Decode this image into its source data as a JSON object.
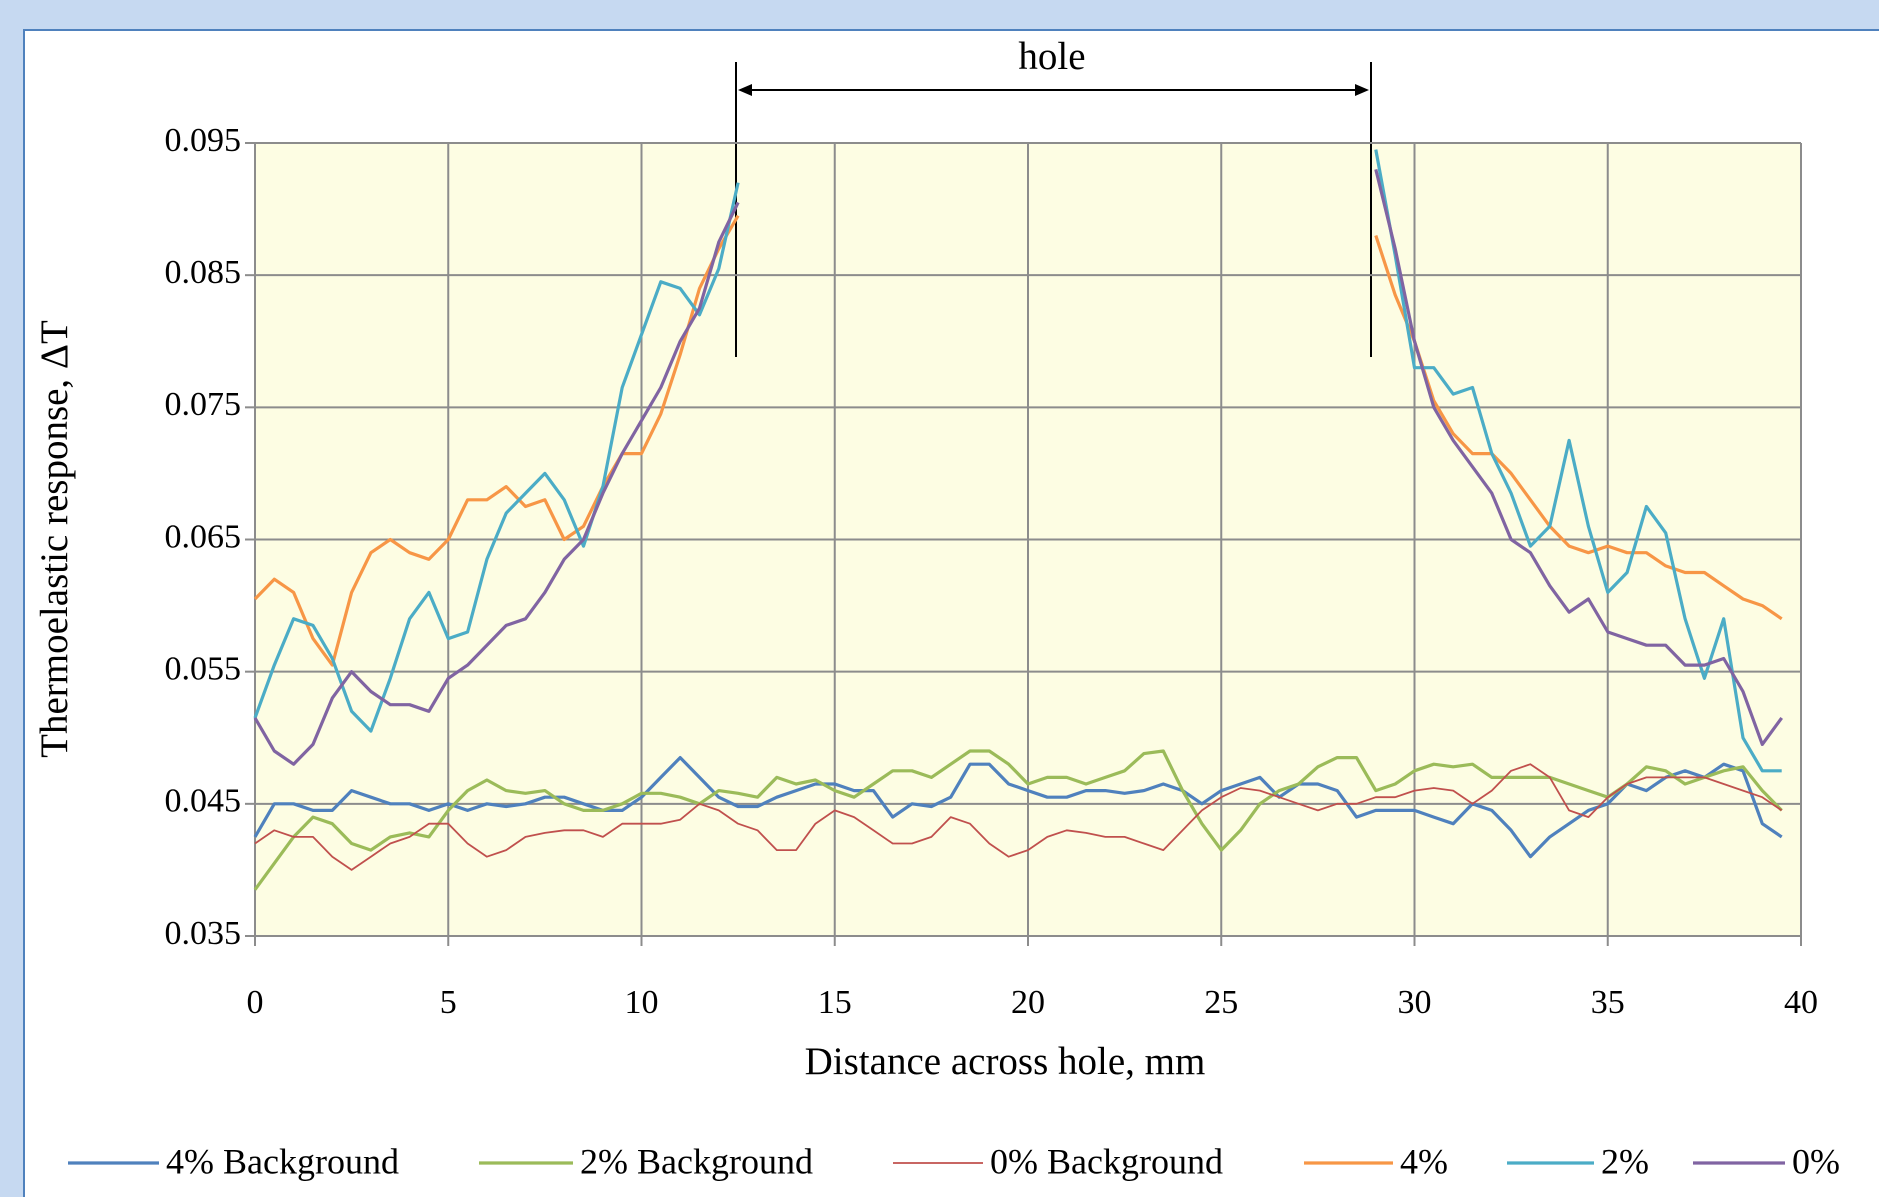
{
  "chart_data": {
    "type": "line",
    "xlabel": "Distance across hole, mm",
    "ylabel": "Thermoelastic response, ΔT",
    "annotation": "hole",
    "x": [
      0,
      0.5,
      1,
      1.5,
      2,
      2.5,
      3,
      3.5,
      4,
      4.5,
      5,
      5.5,
      6,
      6.5,
      7,
      7.5,
      8,
      8.5,
      9,
      9.5,
      10,
      10.5,
      11,
      11.5,
      12,
      12.5,
      13,
      13.5,
      14,
      14.5,
      15,
      15.5,
      16,
      16.5,
      17,
      17.5,
      18,
      18.5,
      19,
      19.5,
      20,
      20.5,
      21,
      21.5,
      22,
      22.5,
      23,
      23.5,
      24,
      24.5,
      25,
      25.5,
      26,
      26.5,
      27,
      27.5,
      28,
      28.5,
      29,
      29.5,
      30,
      30.5,
      31,
      31.5,
      32,
      32.5,
      33,
      33.5,
      34,
      34.5,
      35,
      35.5,
      36,
      36.5,
      37,
      37.5,
      38,
      38.5,
      39,
      39.5
    ],
    "xlim": [
      0,
      40
    ],
    "xticks": [
      0,
      5,
      10,
      15,
      20,
      25,
      30,
      35,
      40
    ],
    "ylim": [
      0.035,
      0.095
    ],
    "yticks": [
      0.035,
      0.045,
      0.055,
      0.065,
      0.075,
      0.085,
      0.095
    ],
    "grid": true,
    "legend": "bottom",
    "series": [
      {
        "name": "4% Background",
        "color": "#4f81bd",
        "values": [
          0.0425,
          0.045,
          0.045,
          0.0445,
          0.0445,
          0.046,
          0.0455,
          0.045,
          0.045,
          0.0445,
          0.045,
          0.0445,
          0.045,
          0.0448,
          0.045,
          0.0455,
          0.0455,
          0.045,
          0.0445,
          0.0445,
          0.0455,
          0.047,
          0.0485,
          0.047,
          0.0455,
          0.0448,
          0.0448,
          0.0455,
          0.046,
          0.0465,
          0.0465,
          0.046,
          0.046,
          0.044,
          0.045,
          0.0448,
          0.0455,
          0.048,
          0.048,
          0.0465,
          0.046,
          0.0455,
          0.0455,
          0.046,
          0.046,
          0.0458,
          0.046,
          0.0465,
          0.046,
          0.045,
          0.046,
          0.0465,
          0.047,
          0.0455,
          0.0465,
          0.0465,
          0.046,
          0.044,
          0.0445,
          0.0445,
          0.0445,
          0.044,
          0.0435,
          0.045,
          0.0445,
          0.043,
          0.041,
          0.0425,
          0.0435,
          0.0445,
          0.045,
          0.0465,
          0.046,
          0.047,
          0.0475,
          0.047,
          0.048,
          0.0475,
          0.0435,
          0.0425
        ]
      },
      {
        "name": "2% Background",
        "color": "#9bbb59",
        "values": [
          0.0385,
          0.0405,
          0.0425,
          0.044,
          0.0435,
          0.042,
          0.0415,
          0.0425,
          0.0428,
          0.0425,
          0.0445,
          0.046,
          0.0468,
          0.046,
          0.0458,
          0.046,
          0.045,
          0.0445,
          0.0445,
          0.045,
          0.0458,
          0.0458,
          0.0455,
          0.045,
          0.046,
          0.0458,
          0.0455,
          0.047,
          0.0465,
          0.0468,
          0.046,
          0.0455,
          0.0465,
          0.0475,
          0.0475,
          0.047,
          0.048,
          0.049,
          0.049,
          0.048,
          0.0465,
          0.047,
          0.047,
          0.0465,
          0.047,
          0.0475,
          0.0488,
          0.049,
          0.046,
          0.0435,
          0.0415,
          0.043,
          0.045,
          0.046,
          0.0465,
          0.0478,
          0.0485,
          0.0485,
          0.046,
          0.0465,
          0.0475,
          0.048,
          0.0478,
          0.048,
          0.047,
          0.047,
          0.047,
          0.047,
          0.0465,
          0.046,
          0.0455,
          0.0465,
          0.0478,
          0.0475,
          0.0465,
          0.047,
          0.0475,
          0.0478,
          0.046,
          0.0445
        ]
      },
      {
        "name": "0% Background",
        "color": "#c0504d",
        "values": [
          0.042,
          0.043,
          0.0425,
          0.0425,
          0.041,
          0.04,
          0.041,
          0.042,
          0.0425,
          0.0435,
          0.0435,
          0.042,
          0.041,
          0.0415,
          0.0425,
          0.0428,
          0.043,
          0.043,
          0.0425,
          0.0435,
          0.0435,
          0.0435,
          0.0438,
          0.045,
          0.0445,
          0.0435,
          0.043,
          0.0415,
          0.0415,
          0.0435,
          0.0445,
          0.044,
          0.043,
          0.042,
          0.042,
          0.0425,
          0.044,
          0.0435,
          0.042,
          0.041,
          0.0415,
          0.0425,
          0.043,
          0.0428,
          0.0425,
          0.0425,
          0.042,
          0.0415,
          0.043,
          0.0445,
          0.0455,
          0.0462,
          0.046,
          0.0455,
          0.045,
          0.0445,
          0.045,
          0.045,
          0.0455,
          0.0455,
          0.046,
          0.0462,
          0.046,
          0.045,
          0.046,
          0.0475,
          0.048,
          0.047,
          0.0445,
          0.044,
          0.0455,
          0.0465,
          0.047,
          0.047,
          0.047,
          0.047,
          0.0465,
          0.046,
          0.0455,
          0.0445
        ]
      },
      {
        "name": "4%",
        "color": "#f79646",
        "values": [
          0.0605,
          0.062,
          0.061,
          0.0575,
          0.0555,
          0.061,
          0.064,
          0.065,
          0.064,
          0.0635,
          0.065,
          0.068,
          0.068,
          0.069,
          0.0675,
          0.068,
          0.065,
          0.066,
          0.069,
          0.0715,
          0.0715,
          0.0745,
          0.079,
          0.084,
          0.087,
          0.0895,
          null,
          null,
          null,
          null,
          null,
          null,
          null,
          null,
          null,
          null,
          null,
          null,
          null,
          null,
          null,
          null,
          null,
          null,
          null,
          null,
          null,
          null,
          null,
          null,
          null,
          null,
          null,
          null,
          null,
          null,
          null,
          null,
          0.088,
          0.0835,
          0.08,
          0.0755,
          0.073,
          0.0715,
          0.0715,
          0.07,
          0.068,
          0.066,
          0.0645,
          0.064,
          0.0645,
          0.064,
          0.064,
          0.063,
          0.0625,
          0.0625,
          0.0615,
          0.0605,
          0.06,
          0.059
        ]
      },
      {
        "name": "2%",
        "color": "#4bacc6",
        "values": [
          0.0515,
          0.0555,
          0.059,
          0.0585,
          0.056,
          0.052,
          0.0505,
          0.0545,
          0.059,
          0.061,
          0.0575,
          0.058,
          0.0635,
          0.067,
          0.0685,
          0.07,
          0.068,
          0.0645,
          0.069,
          0.0765,
          0.0805,
          0.0845,
          0.084,
          0.082,
          0.0855,
          0.092,
          null,
          null,
          null,
          null,
          null,
          null,
          null,
          null,
          null,
          null,
          null,
          null,
          null,
          null,
          null,
          null,
          null,
          null,
          null,
          null,
          null,
          null,
          null,
          null,
          null,
          null,
          null,
          null,
          null,
          null,
          null,
          null,
          0.0945,
          0.0865,
          0.078,
          0.078,
          0.076,
          0.0765,
          0.0715,
          0.0685,
          0.0645,
          0.066,
          0.0725,
          0.066,
          0.061,
          0.0625,
          0.0675,
          0.0655,
          0.059,
          0.0545,
          0.059,
          0.05,
          0.0475,
          0.0475
        ]
      },
      {
        "name": "0%",
        "color": "#8064a2",
        "values": [
          0.0515,
          0.049,
          0.048,
          0.0495,
          0.053,
          0.055,
          0.0535,
          0.0525,
          0.0525,
          0.052,
          0.0545,
          0.0555,
          0.057,
          0.0585,
          0.059,
          0.061,
          0.0635,
          0.065,
          0.0685,
          0.0715,
          0.074,
          0.0765,
          0.08,
          0.0825,
          0.0875,
          0.0905,
          null,
          null,
          null,
          null,
          null,
          null,
          null,
          null,
          null,
          null,
          null,
          null,
          null,
          null,
          null,
          null,
          null,
          null,
          null,
          null,
          null,
          null,
          null,
          null,
          null,
          null,
          null,
          null,
          null,
          null,
          null,
          null,
          0.093,
          0.087,
          0.08,
          0.075,
          0.0725,
          0.0705,
          0.0685,
          0.065,
          0.064,
          0.0615,
          0.0595,
          0.0605,
          0.058,
          0.0575,
          0.057,
          0.057,
          0.0555,
          0.0555,
          0.056,
          0.0535,
          0.0495,
          0.0515
        ]
      }
    ]
  }
}
